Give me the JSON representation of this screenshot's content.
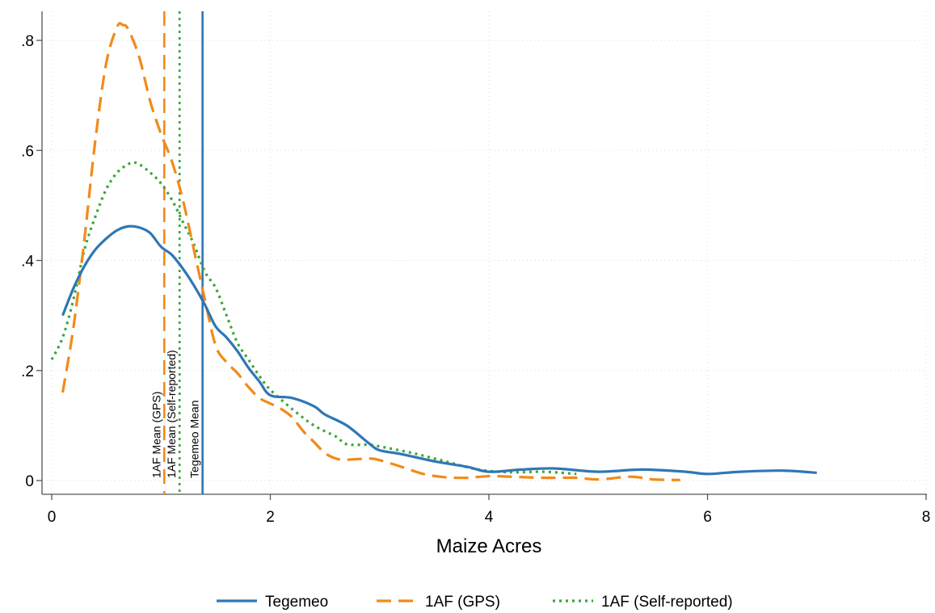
{
  "chart_data": {
    "type": "line",
    "title": "",
    "xlabel": "Maize Acres",
    "ylabel": "",
    "xlim": [
      0,
      8
    ],
    "ylim": [
      0,
      0.85
    ],
    "x_ticks": [
      0,
      2,
      4,
      6,
      8
    ],
    "x_tick_labels": [
      "0",
      "2",
      "4",
      "6",
      "8"
    ],
    "y_ticks": [
      0,
      0.2,
      0.4,
      0.6,
      0.8
    ],
    "y_tick_labels": [
      "0",
      ".2",
      ".4",
      ".6",
      ".8"
    ],
    "grid": true,
    "legend_position": "bottom",
    "series": [
      {
        "name": "Tegemeo",
        "color": "#2f77b5",
        "style": "solid",
        "points": [
          [
            0.1,
            0.3
          ],
          [
            0.2,
            0.35
          ],
          [
            0.3,
            0.39
          ],
          [
            0.4,
            0.42
          ],
          [
            0.5,
            0.44
          ],
          [
            0.6,
            0.455
          ],
          [
            0.7,
            0.462
          ],
          [
            0.8,
            0.46
          ],
          [
            0.9,
            0.45
          ],
          [
            1.0,
            0.425
          ],
          [
            1.1,
            0.41
          ],
          [
            1.2,
            0.385
          ],
          [
            1.3,
            0.355
          ],
          [
            1.4,
            0.32
          ],
          [
            1.5,
            0.28
          ],
          [
            1.6,
            0.26
          ],
          [
            1.7,
            0.235
          ],
          [
            1.8,
            0.205
          ],
          [
            1.9,
            0.18
          ],
          [
            2.0,
            0.155
          ],
          [
            2.2,
            0.15
          ],
          [
            2.4,
            0.135
          ],
          [
            2.5,
            0.12
          ],
          [
            2.7,
            0.1
          ],
          [
            2.9,
            0.068
          ],
          [
            3.0,
            0.055
          ],
          [
            3.2,
            0.048
          ],
          [
            3.5,
            0.035
          ],
          [
            3.8,
            0.025
          ],
          [
            4.0,
            0.016
          ],
          [
            4.3,
            0.02
          ],
          [
            4.6,
            0.022
          ],
          [
            5.0,
            0.016
          ],
          [
            5.4,
            0.02
          ],
          [
            5.8,
            0.016
          ],
          [
            6.0,
            0.012
          ],
          [
            6.3,
            0.016
          ],
          [
            6.7,
            0.018
          ],
          [
            7.0,
            0.014
          ]
        ]
      },
      {
        "name": "1AF (GPS)",
        "color": "#f28a1a",
        "style": "dashed",
        "points": [
          [
            0.1,
            0.16
          ],
          [
            0.2,
            0.28
          ],
          [
            0.3,
            0.44
          ],
          [
            0.4,
            0.62
          ],
          [
            0.5,
            0.76
          ],
          [
            0.6,
            0.825
          ],
          [
            0.65,
            0.828
          ],
          [
            0.7,
            0.82
          ],
          [
            0.8,
            0.77
          ],
          [
            0.9,
            0.69
          ],
          [
            1.0,
            0.63
          ],
          [
            1.1,
            0.58
          ],
          [
            1.2,
            0.51
          ],
          [
            1.3,
            0.42
          ],
          [
            1.4,
            0.33
          ],
          [
            1.5,
            0.245
          ],
          [
            1.6,
            0.215
          ],
          [
            1.7,
            0.195
          ],
          [
            1.8,
            0.17
          ],
          [
            1.9,
            0.15
          ],
          [
            2.0,
            0.14
          ],
          [
            2.1,
            0.13
          ],
          [
            2.2,
            0.115
          ],
          [
            2.3,
            0.09
          ],
          [
            2.4,
            0.07
          ],
          [
            2.5,
            0.05
          ],
          [
            2.6,
            0.04
          ],
          [
            2.7,
            0.038
          ],
          [
            2.9,
            0.04
          ],
          [
            3.0,
            0.037
          ],
          [
            3.2,
            0.025
          ],
          [
            3.4,
            0.012
          ],
          [
            3.6,
            0.006
          ],
          [
            3.8,
            0.005
          ],
          [
            4.0,
            0.008
          ],
          [
            4.2,
            0.007
          ],
          [
            4.5,
            0.005
          ],
          [
            4.8,
            0.005
          ],
          [
            5.0,
            0.002
          ],
          [
            5.3,
            0.007
          ],
          [
            5.5,
            0.002
          ],
          [
            5.75,
            0.001
          ]
        ]
      },
      {
        "name": "1AF (Self-reported)",
        "color": "#3aa63a",
        "style": "dotted",
        "points": [
          [
            0.0,
            0.22
          ],
          [
            0.1,
            0.26
          ],
          [
            0.2,
            0.33
          ],
          [
            0.3,
            0.42
          ],
          [
            0.4,
            0.48
          ],
          [
            0.5,
            0.53
          ],
          [
            0.6,
            0.56
          ],
          [
            0.7,
            0.575
          ],
          [
            0.75,
            0.578
          ],
          [
            0.8,
            0.575
          ],
          [
            0.9,
            0.56
          ],
          [
            1.0,
            0.54
          ],
          [
            1.1,
            0.51
          ],
          [
            1.2,
            0.47
          ],
          [
            1.3,
            0.43
          ],
          [
            1.4,
            0.38
          ],
          [
            1.5,
            0.35
          ],
          [
            1.6,
            0.3
          ],
          [
            1.7,
            0.25
          ],
          [
            1.8,
            0.22
          ],
          [
            1.9,
            0.19
          ],
          [
            2.0,
            0.165
          ],
          [
            2.2,
            0.13
          ],
          [
            2.4,
            0.1
          ],
          [
            2.6,
            0.08
          ],
          [
            2.7,
            0.066
          ],
          [
            2.9,
            0.065
          ],
          [
            3.0,
            0.062
          ],
          [
            3.3,
            0.05
          ],
          [
            3.6,
            0.035
          ],
          [
            3.9,
            0.02
          ],
          [
            4.2,
            0.015
          ],
          [
            4.5,
            0.016
          ],
          [
            4.8,
            0.012
          ]
        ]
      }
    ],
    "reference_lines": [
      {
        "label": "1AF Mean (GPS)",
        "x": 1.03,
        "color": "#f28a1a",
        "style": "dashed"
      },
      {
        "label": "1AF Mean (Self-reported)",
        "x": 1.17,
        "color": "#3aa63a",
        "style": "dotted"
      },
      {
        "label": "Tegemeo Mean",
        "x": 1.38,
        "color": "#2f77b5",
        "style": "solid"
      }
    ]
  }
}
